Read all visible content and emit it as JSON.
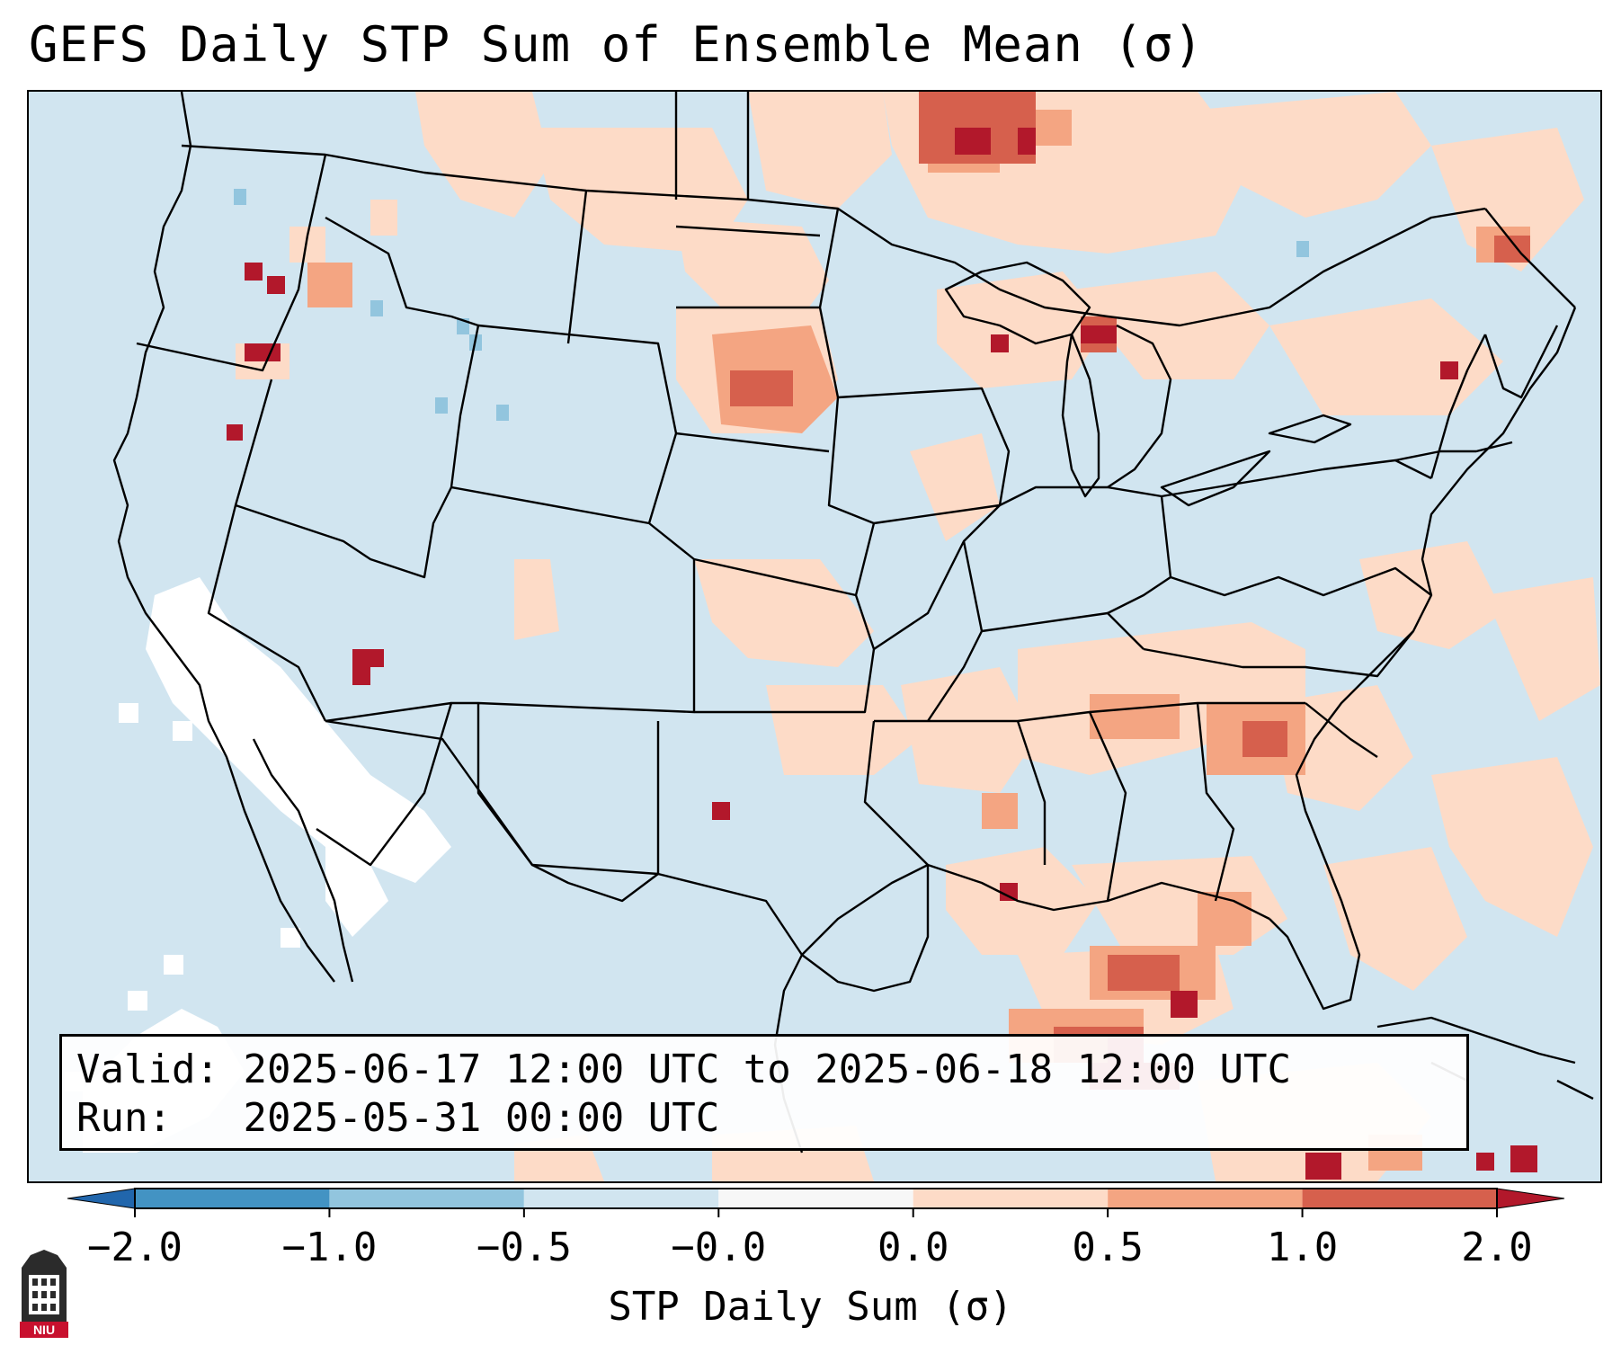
{
  "header": {
    "title": "GEFS Daily STP Sum of Ensemble Mean (σ)"
  },
  "info": {
    "valid_label": "Valid:",
    "valid_value": "2025-06-17 12:00 UTC to 2025-06-18 12:00 UTC",
    "run_label": "Run:",
    "run_value": "2025-05-31 00:00 UTC"
  },
  "colorbar": {
    "label": "STP Daily Sum (σ)",
    "ticks": [
      "−2.0",
      "−1.0",
      "−0.5",
      "−0.0",
      "0.0",
      "0.5",
      "1.0",
      "2.0"
    ],
    "bins": [
      {
        "from": "-2.0",
        "to": "-1.0",
        "color": "#4393c3"
      },
      {
        "from": "-1.0",
        "to": "-0.5",
        "color": "#92c5de"
      },
      {
        "from": "-0.5",
        "to": "-0.0",
        "color": "#d1e5f0"
      },
      {
        "from": "-0.0",
        "to": "0.0",
        "color": "#f7f7f7"
      },
      {
        "from": "0.0",
        "to": "0.5",
        "color": "#fddbc7"
      },
      {
        "from": "0.5",
        "to": "1.0",
        "color": "#f4a582"
      },
      {
        "from": "1.0",
        "to": "2.0",
        "color": "#d6604d"
      }
    ],
    "under_color": "#2166ac",
    "over_color": "#b2182b"
  },
  "colors": {
    "background": "#d1e5f0",
    "neutral": "#ffffff",
    "light_positive": "#fddbc7",
    "positive": "#f4a582",
    "strong_positive": "#d6604d",
    "extreme_positive": "#b2182b",
    "negative": "#92c5de",
    "boundary": "#000000"
  },
  "logo": {
    "text": "NIU",
    "color": "#c8102e"
  }
}
